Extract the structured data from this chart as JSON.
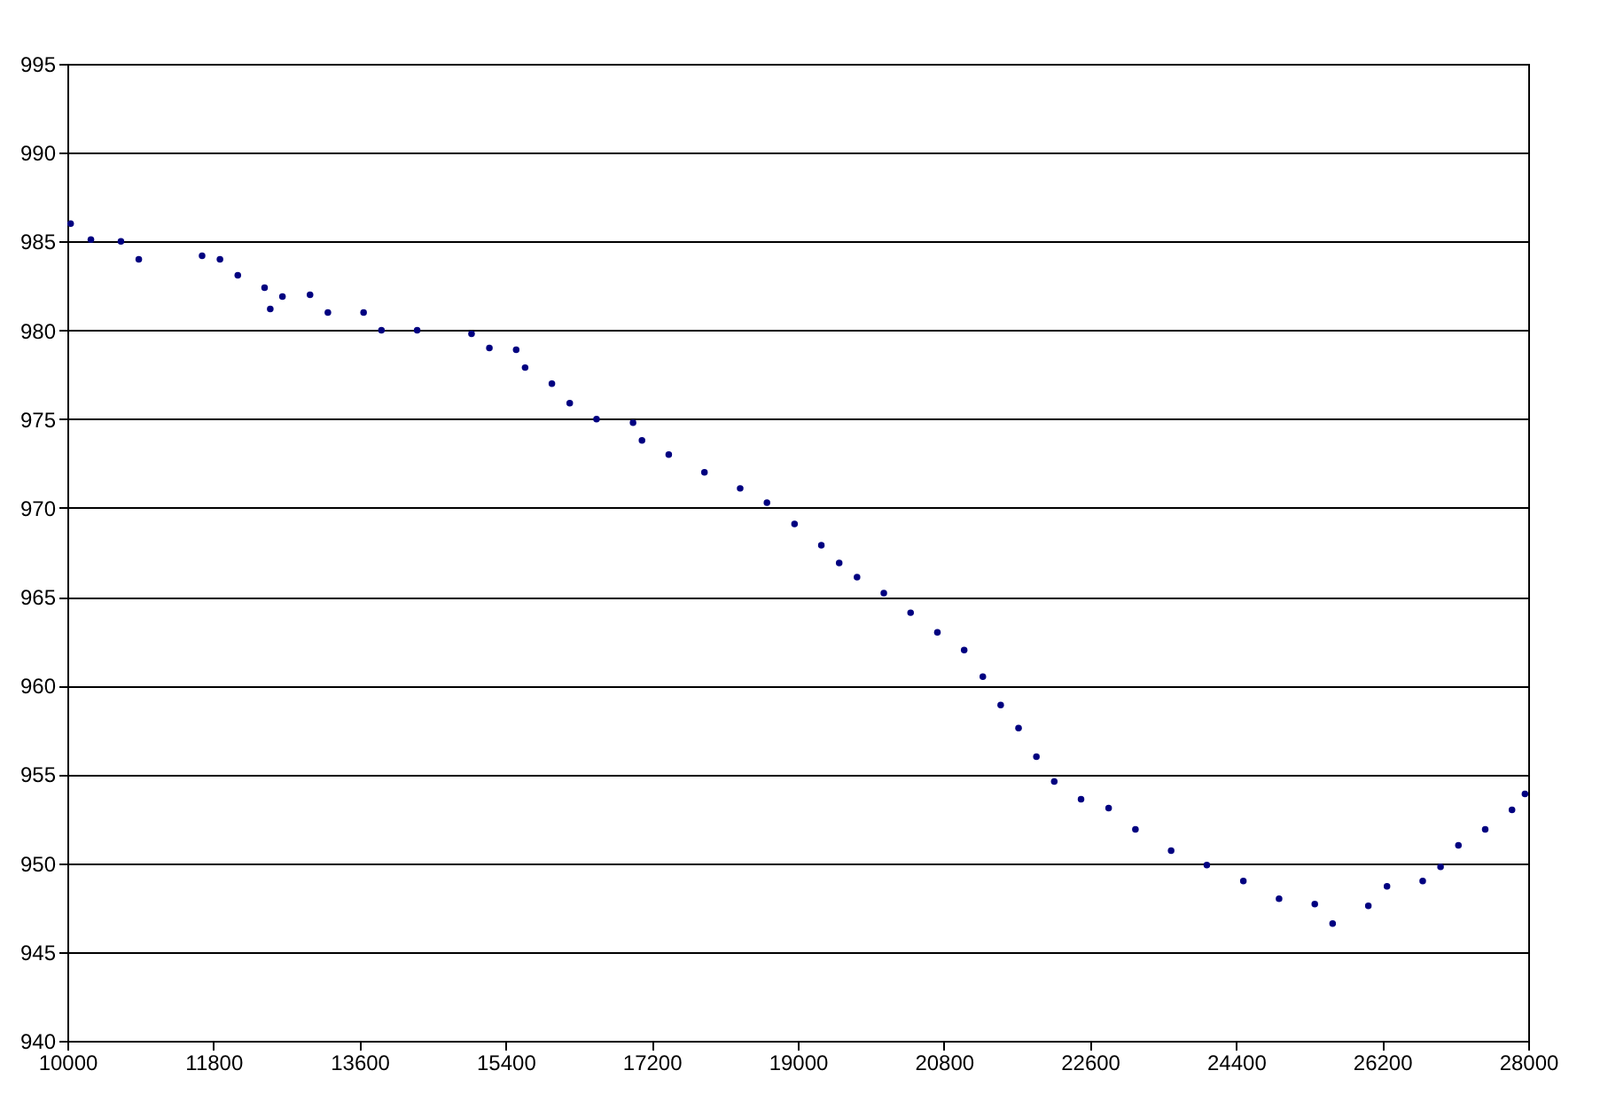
{
  "chart_data": {
    "type": "scatter",
    "xlim": [
      10000,
      28000
    ],
    "xticks": [
      10000,
      11800,
      13600,
      15400,
      17200,
      19000,
      20800,
      22600,
      24400,
      26200,
      28000
    ],
    "ylim": [
      940,
      995
    ],
    "yticks": [
      940,
      945,
      950,
      955,
      960,
      965,
      970,
      975,
      980,
      985,
      990,
      995
    ],
    "grid": "y",
    "legend": false,
    "marker": "circle",
    "series": [
      {
        "color": "#000080",
        "x": [
          10040,
          10290,
          10660,
          10880,
          11660,
          11880,
          12100,
          12430,
          12500,
          12650,
          12990,
          13210,
          13650,
          13870,
          14310,
          14980,
          15200,
          15530,
          15640,
          15970,
          16190,
          16520,
          16970,
          17080,
          17410,
          17850,
          18290,
          18620,
          18960,
          19290,
          19510,
          19730,
          20060,
          20390,
          20720,
          21050,
          21280,
          21500,
          21720,
          21940,
          22160,
          22490,
          22830,
          23160,
          23600,
          24040,
          24490,
          24930,
          25370,
          25590,
          26030,
          26260,
          26700,
          26920,
          27140,
          27470,
          27800,
          27960
        ],
        "values": [
          986,
          985.1,
          985,
          984,
          984.2,
          984,
          983.1,
          982.4,
          981.2,
          981.9,
          982,
          981,
          981,
          980,
          980,
          979.8,
          979,
          978.9,
          977.9,
          977,
          975.9,
          975,
          974.8,
          973.8,
          973,
          972,
          971.1,
          970.3,
          969.1,
          967.9,
          966.9,
          966.1,
          965.2,
          964.1,
          963,
          962,
          960.5,
          958.9,
          957.6,
          956,
          954.6,
          953.6,
          953.1,
          951.9,
          950.7,
          949.9,
          949,
          948,
          947.7,
          946.6,
          947.6,
          948.7,
          949,
          949.8,
          951,
          951.9,
          953,
          953.9
        ]
      }
    ]
  }
}
